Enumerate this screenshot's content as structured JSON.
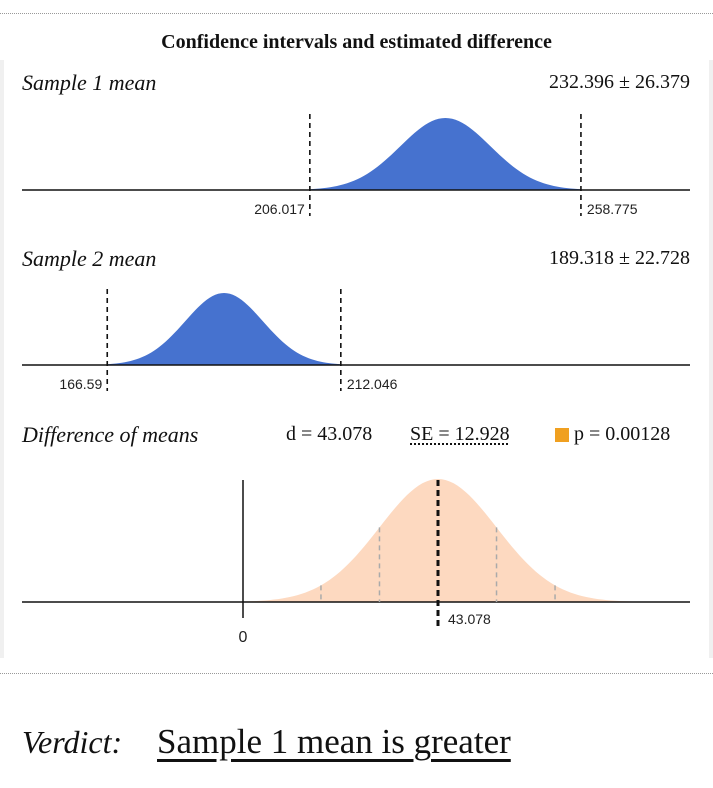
{
  "title": "Confidence intervals and estimated difference",
  "colors": {
    "sample_fill": "#4672cf",
    "diff_fill": "#fdd9c0",
    "p_marker": "#f0a020"
  },
  "chart_data": [
    {
      "type": "area",
      "label": "Sample 1 mean",
      "summary": "232.396 ± 26.379",
      "mean": 232.396,
      "margin": 26.379,
      "ci": [
        206.017,
        258.775
      ],
      "tick_labels": [
        "206.017",
        "258.775"
      ],
      "xlim": [
        150,
        280
      ]
    },
    {
      "type": "area",
      "label": "Sample 2 mean",
      "summary": "189.318 ± 22.728",
      "mean": 189.318,
      "margin": 22.728,
      "ci": [
        166.59,
        212.046
      ],
      "tick_labels": [
        "166.59",
        "212.046"
      ],
      "xlim": [
        150,
        280
      ]
    },
    {
      "type": "area",
      "label": "Difference of means",
      "d_text": "d = 43.078",
      "se_text": "SE = 12.928",
      "p_text": "p = 0.00128",
      "d": 43.078,
      "se": 12.928,
      "p": 0.00128,
      "zero_label": "0",
      "mean_label": "43.078"
    }
  ],
  "verdict": {
    "label": "Verdict:",
    "text": "Sample 1 mean is greater"
  }
}
